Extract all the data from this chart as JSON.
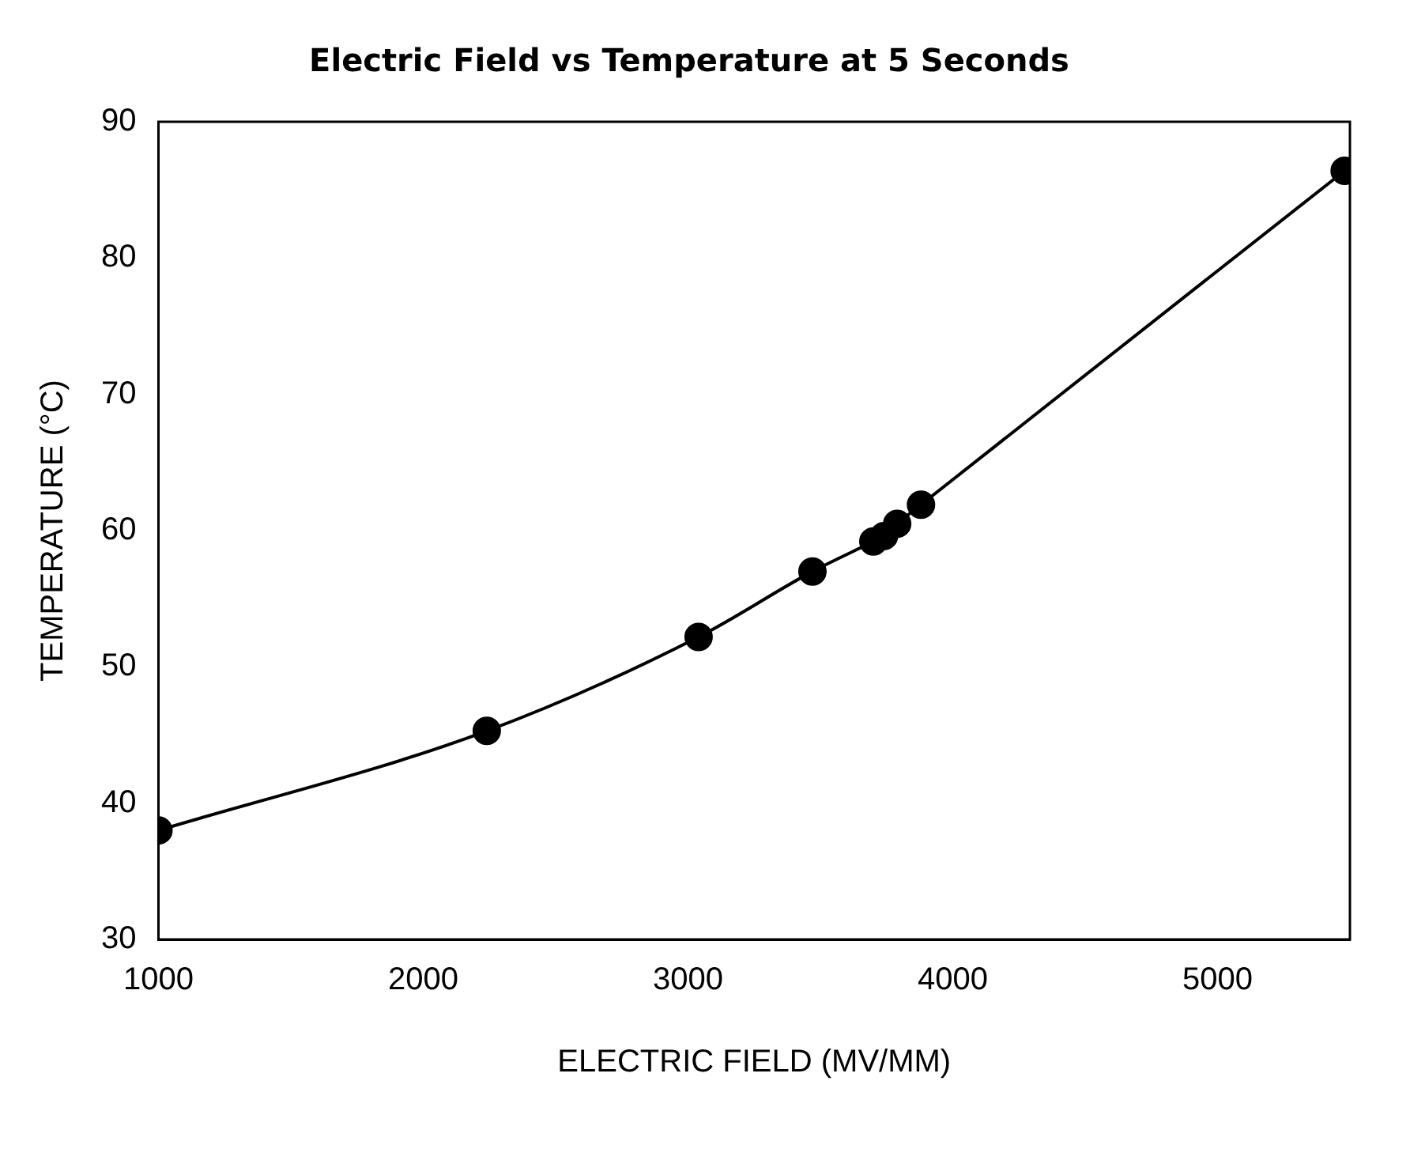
{
  "chart_data": {
    "type": "line",
    "title": "Electric Field vs Temperature at 5 Seconds",
    "xlabel": "ELECTRIC FIELD (MV/MM)",
    "ylabel": "TEMPERATURE (°C)",
    "x": [
      1000,
      2240,
      3040,
      3470,
      3700,
      3740,
      3790,
      3880,
      5480
    ],
    "series": [
      {
        "color": "#000000",
        "values": [
          38.0,
          45.3,
          52.2,
          57.0,
          59.2,
          59.6,
          60.5,
          61.9,
          86.4
        ]
      }
    ],
    "xlim": [
      1000,
      5500
    ],
    "xticks": [
      1000,
      2000,
      3000,
      4000,
      5000
    ],
    "ylim": [
      30,
      90
    ],
    "yticks": [
      30,
      40,
      50,
      60,
      70,
      80,
      90
    ],
    "grid": false,
    "legend": false,
    "marker": "circle",
    "line_style": "solid"
  }
}
